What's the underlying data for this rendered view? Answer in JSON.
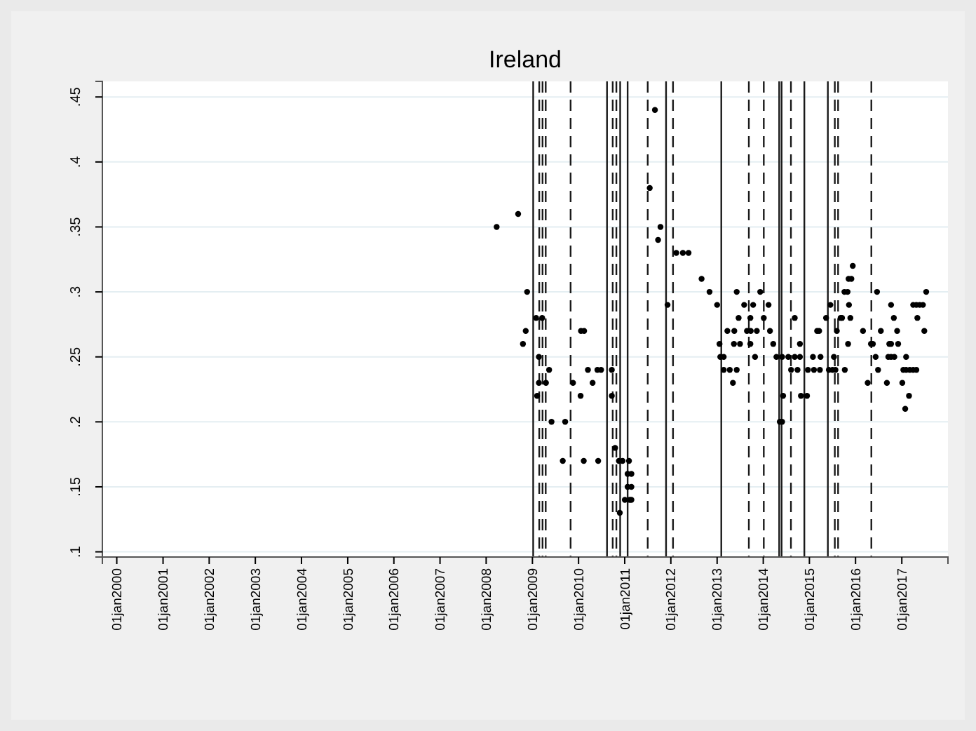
{
  "chart_data": {
    "type": "scatter",
    "title": "Ireland",
    "x": [
      "2008-03-24",
      "2008-09-10",
      "2008-10-18",
      "2008-11-09",
      "2008-11-20",
      "2009-01-30",
      "2009-02-07",
      "2009-02-21",
      "2009-02-21",
      "2009-03-19",
      "2009-04-18",
      "2009-05-13",
      "2009-06-01",
      "2009-08-29",
      "2009-09-17",
      "2009-11-18",
      "2010-01-17",
      "2010-01-20",
      "2010-02-11",
      "2010-02-14",
      "2010-03-16",
      "2010-04-22",
      "2010-05-30",
      "2010-06-05",
      "2010-06-28",
      "2010-09-21",
      "2010-09-21",
      "2010-10-17",
      "2010-11-16",
      "2010-11-23",
      "2010-12-15",
      "2011-01-02",
      "2011-01-24",
      "2011-01-24",
      "2011-02-04",
      "2011-02-09",
      "2011-02-23",
      "2011-02-23",
      "2011-02-23",
      "2011-07-18",
      "2011-08-28",
      "2011-09-22",
      "2011-10-11",
      "2011-12-06",
      "2012-02-13",
      "2012-04-05",
      "2012-05-20",
      "2012-08-31",
      "2012-11-02",
      "2013-01-01",
      "2013-01-20",
      "2013-01-26",
      "2013-02-22",
      "2013-02-22",
      "2013-03-23",
      "2013-04-11",
      "2013-05-06",
      "2013-05-14",
      "2013-05-17",
      "2013-06-05",
      "2013-06-05",
      "2013-06-20",
      "2013-07-01",
      "2013-08-03",
      "2013-08-25",
      "2013-09-21",
      "2013-09-21",
      "2013-09-24",
      "2013-10-13",
      "2013-10-28",
      "2013-11-11",
      "2013-12-08",
      "2014-01-05",
      "2014-02-12",
      "2014-02-23",
      "2014-03-21",
      "2014-04-15",
      "2014-05-12",
      "2014-05-30",
      "2014-05-30",
      "2014-06-07",
      "2014-07-18",
      "2014-08-09",
      "2014-09-07",
      "2014-09-07",
      "2014-09-29",
      "2014-10-18",
      "2014-10-18",
      "2014-10-26",
      "2014-12-13",
      "2014-12-20",
      "2015-01-29",
      "2015-02-06",
      "2015-03-03",
      "2015-03-19",
      "2015-03-25",
      "2015-03-30",
      "2015-05-13",
      "2015-06-04",
      "2015-06-16",
      "2015-07-03",
      "2015-07-14",
      "2015-07-26",
      "2015-08-06",
      "2015-09-05",
      "2015-09-16",
      "2015-10-05",
      "2015-10-08",
      "2015-10-30",
      "2015-11-03",
      "2015-11-07",
      "2015-11-10",
      "2015-11-21",
      "2015-11-29",
      "2015-12-10",
      "2016-02-29",
      "2016-04-06",
      "2016-05-02",
      "2016-05-17",
      "2016-06-08",
      "2016-06-19",
      "2016-06-27",
      "2016-07-19",
      "2016-09-05",
      "2016-09-16",
      "2016-09-24",
      "2016-10-08",
      "2016-10-08",
      "2016-10-08",
      "2016-10-30",
      "2016-11-03",
      "2016-11-25",
      "2016-12-03",
      "2017-01-05",
      "2017-01-13",
      "2017-01-28",
      "2017-02-04",
      "2017-02-04",
      "2017-02-27",
      "2017-03-05",
      "2017-04-01",
      "2017-04-01",
      "2017-04-26",
      "2017-04-26",
      "2017-05-04",
      "2017-05-22",
      "2017-06-17",
      "2017-06-28",
      "2017-07-13"
    ],
    "values": [
      0.35,
      0.36,
      0.26,
      0.27,
      0.3,
      0.28,
      0.22,
      0.25,
      0.23,
      0.28,
      0.23,
      0.24,
      0.2,
      0.17,
      0.2,
      0.23,
      0.22,
      0.27,
      0.17,
      0.27,
      0.24,
      0.23,
      0.24,
      0.17,
      0.24,
      0.24,
      0.22,
      0.18,
      0.17,
      0.13,
      0.17,
      0.14,
      0.16,
      0.15,
      0.17,
      0.14,
      0.16,
      0.15,
      0.14,
      0.38,
      0.44,
      0.34,
      0.35,
      0.29,
      0.33,
      0.33,
      0.33,
      0.31,
      0.3,
      0.29,
      0.26,
      0.25,
      0.25,
      0.24,
      0.27,
      0.24,
      0.23,
      0.26,
      0.27,
      0.24,
      0.3,
      0.28,
      0.26,
      0.29,
      0.27,
      0.28,
      0.26,
      0.27,
      0.29,
      0.25,
      0.27,
      0.3,
      0.28,
      0.29,
      0.27,
      0.26,
      0.25,
      0.2,
      0.25,
      0.2,
      0.22,
      0.25,
      0.24,
      0.25,
      0.28,
      0.24,
      0.25,
      0.26,
      0.22,
      0.22,
      0.24,
      0.25,
      0.24,
      0.27,
      0.27,
      0.24,
      0.25,
      0.28,
      0.24,
      0.29,
      0.24,
      0.25,
      0.24,
      0.27,
      0.28,
      0.28,
      0.3,
      0.24,
      0.3,
      0.26,
      0.31,
      0.29,
      0.28,
      0.31,
      0.32,
      0.27,
      0.23,
      0.26,
      0.26,
      0.25,
      0.3,
      0.24,
      0.27,
      0.23,
      0.25,
      0.26,
      0.25,
      0.26,
      0.29,
      0.28,
      0.25,
      0.27,
      0.26,
      0.23,
      0.24,
      0.21,
      0.24,
      0.25,
      0.22,
      0.24,
      0.24,
      0.29,
      0.24,
      0.29,
      0.28,
      0.29,
      0.29,
      0.27,
      0.3
    ],
    "color": "#000000",
    "marker": "circle",
    "xlim": [
      "1999-09-09",
      "2018-01-01"
    ],
    "xticks": [
      {
        "value": "2000-01-01",
        "label": "01jan2000"
      },
      {
        "value": "2001-01-01",
        "label": "01jan2001"
      },
      {
        "value": "2002-01-01",
        "label": "01jan2002"
      },
      {
        "value": "2003-01-01",
        "label": "01jan2003"
      },
      {
        "value": "2004-01-01",
        "label": "01jan2004"
      },
      {
        "value": "2005-01-01",
        "label": "01jan2005"
      },
      {
        "value": "2006-01-01",
        "label": "01jan2006"
      },
      {
        "value": "2007-01-01",
        "label": "01jan2007"
      },
      {
        "value": "2008-01-01",
        "label": "01jan2008"
      },
      {
        "value": "2009-01-01",
        "label": "01jan2009"
      },
      {
        "value": "2010-01-01",
        "label": "01jan2010"
      },
      {
        "value": "2011-01-01",
        "label": "01jan2011"
      },
      {
        "value": "2012-01-01",
        "label": "01jan2012"
      },
      {
        "value": "2013-01-01",
        "label": "01jan2013"
      },
      {
        "value": "2014-01-01",
        "label": "01jan2014"
      },
      {
        "value": "2015-01-01",
        "label": "01jan2015"
      },
      {
        "value": "2016-01-01",
        "label": "01jan2016"
      },
      {
        "value": "2017-01-01",
        "label": "01jan2017"
      }
    ],
    "ylim": [
      0.096,
      0.462
    ],
    "yticks": [
      {
        "value": 0.1,
        "label": ".1"
      },
      {
        "value": 0.15,
        "label": ".15"
      },
      {
        "value": 0.2,
        "label": ".2"
      },
      {
        "value": 0.25,
        "label": ".25"
      },
      {
        "value": 0.3,
        "label": ".3"
      },
      {
        "value": 0.35,
        "label": ".35"
      },
      {
        "value": 0.4,
        "label": ".4"
      },
      {
        "value": 0.45,
        "label": ".45"
      }
    ],
    "grid": "y",
    "ref_lines": [
      {
        "axis": "x",
        "value": "2009-01-07",
        "color": "#1a1a1a",
        "line_style": "solid"
      },
      {
        "axis": "x",
        "value": "2009-02-24",
        "color": "#1a1a1a",
        "line_style": "dashed"
      },
      {
        "axis": "x",
        "value": "2009-03-22",
        "color": "#1a1a1a",
        "line_style": "dashed"
      },
      {
        "axis": "x",
        "value": "2009-04-16",
        "color": "#1a1a1a",
        "line_style": "dashed"
      },
      {
        "axis": "x",
        "value": "2009-10-30",
        "color": "#1a1a1a",
        "line_style": "dashed"
      },
      {
        "axis": "x",
        "value": "2010-08-14",
        "color": "#1a1a1a",
        "line_style": "solid"
      },
      {
        "axis": "x",
        "value": "2010-09-28",
        "color": "#1a1a1a",
        "line_style": "dashed"
      },
      {
        "axis": "x",
        "value": "2010-10-27",
        "color": "#1a1a1a",
        "line_style": "dashed"
      },
      {
        "axis": "x",
        "value": "2010-11-26",
        "color": "#1a1a1a",
        "line_style": "solid"
      },
      {
        "axis": "x",
        "value": "2011-01-24",
        "color": "#1a1a1a",
        "line_style": "solid"
      },
      {
        "axis": "x",
        "value": "2011-07-02",
        "color": "#1a1a1a",
        "line_style": "dashed"
      },
      {
        "axis": "x",
        "value": "2011-11-24",
        "color": "#1a1a1a",
        "line_style": "solid"
      },
      {
        "axis": "x",
        "value": "2012-01-18",
        "color": "#1a1a1a",
        "line_style": "dashed"
      },
      {
        "axis": "x",
        "value": "2013-02-03",
        "color": "#1a1a1a",
        "line_style": "solid"
      },
      {
        "axis": "x",
        "value": "2013-09-09",
        "color": "#1a1a1a",
        "line_style": "dashed"
      },
      {
        "axis": "x",
        "value": "2014-01-05",
        "color": "#1a1a1a",
        "line_style": "dashed"
      },
      {
        "axis": "x",
        "value": "2014-05-07",
        "color": "#1a1a1a",
        "line_style": "solid"
      },
      {
        "axis": "x",
        "value": "2014-05-26",
        "color": "#1a1a1a",
        "line_style": "solid"
      },
      {
        "axis": "x",
        "value": "2014-08-08",
        "color": "#1a1a1a",
        "line_style": "dashed"
      },
      {
        "axis": "x",
        "value": "2014-11-22",
        "color": "#1a1a1a",
        "line_style": "solid"
      },
      {
        "axis": "x",
        "value": "2015-05-27",
        "color": "#1a1a1a",
        "line_style": "solid"
      },
      {
        "axis": "x",
        "value": "2015-07-21",
        "color": "#1a1a1a",
        "line_style": "dashed"
      },
      {
        "axis": "x",
        "value": "2015-08-16",
        "color": "#1a1a1a",
        "line_style": "dashed"
      },
      {
        "axis": "x",
        "value": "2016-05-05",
        "color": "#1a1a1a",
        "line_style": "dashed"
      }
    ]
  }
}
